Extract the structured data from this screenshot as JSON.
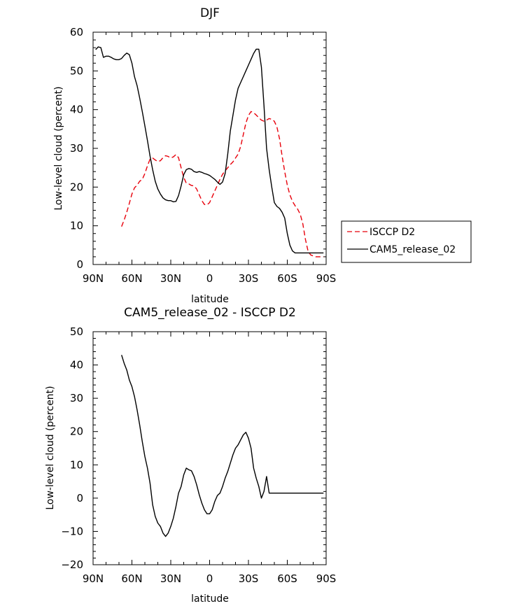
{
  "chart_data": [
    {
      "type": "line",
      "title": "DJF",
      "xlabel": "latitude",
      "ylabel": "Low-level cloud (percent)",
      "xlim": [
        90,
        -90
      ],
      "ylim": [
        0,
        60
      ],
      "xticks": [
        90,
        60,
        30,
        0,
        -30,
        -60,
        -90
      ],
      "xtick_labels": [
        "90N",
        "60N",
        "30N",
        "0",
        "30S",
        "60S",
        "90S"
      ],
      "yticks": [
        0,
        10,
        20,
        30,
        40,
        50,
        60
      ],
      "ytick_labels": [
        "0",
        "10",
        "20",
        "30",
        "40",
        "50",
        "60"
      ],
      "legend_position": "right",
      "series": [
        {
          "name": "ISCCP D2",
          "color": "#e8000b",
          "style": "dashed",
          "x": [
            68,
            66,
            64,
            62,
            60,
            58,
            56,
            54,
            52,
            50,
            48,
            46,
            44,
            42,
            40,
            38,
            36,
            34,
            32,
            30,
            28,
            26,
            24,
            22,
            20,
            18,
            16,
            14,
            12,
            10,
            8,
            6,
            4,
            2,
            0,
            -2,
            -4,
            -6,
            -8,
            -10,
            -12,
            -14,
            -16,
            -18,
            -20,
            -22,
            -24,
            -26,
            -28,
            -30,
            -32,
            -34,
            -36,
            -38,
            -40,
            -42,
            -44,
            -46,
            -48,
            -50,
            -52,
            -54,
            -56,
            -58,
            -60,
            -62,
            -64,
            -66,
            -68,
            -70,
            -72,
            -74,
            -76,
            -78,
            -80,
            -82,
            -84,
            -86,
            -88
          ],
          "y": [
            9.8,
            11.5,
            13.5,
            15.8,
            18.2,
            19.8,
            20.5,
            21.5,
            22.0,
            23.5,
            25.5,
            27.2,
            27.5,
            27.0,
            26.6,
            26.8,
            27.6,
            28.1,
            27.9,
            27.5,
            27.8,
            28.4,
            27.6,
            25.0,
            22.5,
            21.0,
            20.8,
            20.4,
            20.3,
            19.5,
            18.0,
            16.5,
            15.5,
            15.4,
            16.0,
            17.5,
            19.0,
            20.5,
            22.0,
            23.3,
            24.2,
            25.0,
            25.8,
            26.5,
            27.5,
            28.5,
            30.5,
            33.5,
            36.5,
            38.5,
            39.5,
            39.2,
            38.6,
            37.9,
            37.3,
            37.0,
            37.3,
            37.7,
            37.5,
            37.0,
            35.5,
            32.5,
            28.0,
            24.0,
            20.5,
            18.0,
            16.3,
            15.2,
            14.3,
            13.0,
            10.5,
            6.5,
            3.5,
            2.5,
            2.2,
            2.0,
            2.0,
            2.0,
            2.0
          ]
        },
        {
          "name": "CAM5_release_02",
          "color": "#000000",
          "style": "solid",
          "x": [
            88,
            86,
            84,
            82,
            80,
            78,
            76,
            74,
            72,
            70,
            68,
            66,
            64,
            62,
            60,
            58,
            56,
            54,
            52,
            50,
            48,
            46,
            44,
            42,
            40,
            38,
            36,
            34,
            32,
            30,
            28,
            26,
            24,
            22,
            20,
            18,
            16,
            14,
            12,
            10,
            8,
            6,
            4,
            2,
            0,
            -2,
            -4,
            -6,
            -8,
            -10,
            -12,
            -14,
            -16,
            -18,
            -20,
            -22,
            -24,
            -26,
            -28,
            -30,
            -32,
            -34,
            -36,
            -38,
            -40,
            -42,
            -44,
            -46,
            -48,
            -50,
            -52,
            -54,
            -56,
            -58,
            -60,
            -62,
            -64,
            -66,
            -68,
            -70,
            -72,
            -74,
            -76,
            -78,
            -80,
            -82,
            -84,
            -86,
            -88
          ],
          "y": [
            55.5,
            56.2,
            56.0,
            53.5,
            53.8,
            53.8,
            53.5,
            53.1,
            52.9,
            52.9,
            53.2,
            54.0,
            54.6,
            54.2,
            52.0,
            48.5,
            46.2,
            43.0,
            39.5,
            35.8,
            32.0,
            28.0,
            24.5,
            21.5,
            19.5,
            18.2,
            17.2,
            16.7,
            16.5,
            16.5,
            16.2,
            16.3,
            17.8,
            20.3,
            23.2,
            24.5,
            24.8,
            24.6,
            24.0,
            23.8,
            24.0,
            23.8,
            23.5,
            23.3,
            23.0,
            22.5,
            22.0,
            21.3,
            20.7,
            21.3,
            23.5,
            28.5,
            34.5,
            38.5,
            42.5,
            45.5,
            47.0,
            48.5,
            50.0,
            51.5,
            53.0,
            54.5,
            55.6,
            55.6,
            51.0,
            41.0,
            30.0,
            24.5,
            20.0,
            16.0,
            15.0,
            14.5,
            13.5,
            12.0,
            8.0,
            5.0,
            3.5,
            3.0,
            3.0,
            3.0,
            3.0,
            3.0,
            3.0,
            3.0,
            3.0,
            3.0,
            3.0,
            3.0,
            3.0
          ]
        }
      ]
    },
    {
      "type": "line",
      "title": "CAM5_release_02 - ISCCP D2",
      "xlabel": "latitude",
      "ylabel": "Low-level cloud (percent)",
      "xlim": [
        90,
        -90
      ],
      "ylim": [
        -20,
        50
      ],
      "xticks": [
        90,
        60,
        30,
        0,
        -30,
        -60,
        -90
      ],
      "xtick_labels": [
        "90N",
        "60N",
        "30N",
        "0",
        "30S",
        "60S",
        "90S"
      ],
      "yticks": [
        -20,
        -10,
        0,
        10,
        20,
        30,
        40,
        50
      ],
      "ytick_labels": [
        "−20",
        "−10",
        "0",
        "10",
        "20",
        "30",
        "40",
        "50"
      ],
      "series": [
        {
          "color": "#000000",
          "style": "solid",
          "x": [
            68,
            66,
            64,
            62,
            60,
            58,
            56,
            54,
            52,
            50,
            48,
            46,
            44,
            42,
            40,
            38,
            36,
            34,
            32,
            30,
            28,
            26,
            24,
            22,
            20,
            18,
            16,
            14,
            12,
            10,
            8,
            6,
            4,
            2,
            0,
            -2,
            -4,
            -6,
            -8,
            -10,
            -12,
            -14,
            -16,
            -18,
            -20,
            -22,
            -24,
            -26,
            -28,
            -30,
            -32,
            -34,
            -36,
            -38,
            -40,
            -42,
            -44,
            -46,
            -48,
            -50,
            -52,
            -54,
            -56,
            -58,
            -60,
            -62,
            -64,
            -66,
            -68,
            -70,
            -72,
            -74,
            -76,
            -78,
            -80,
            -82,
            -84,
            -86,
            -88
          ],
          "y": [
            43.0,
            40.5,
            38.5,
            35.5,
            33.5,
            30.5,
            26.5,
            22.0,
            17.0,
            12.5,
            9.0,
            4.5,
            -2.0,
            -5.5,
            -7.5,
            -8.5,
            -10.5,
            -11.5,
            -10.5,
            -8.5,
            -6.0,
            -2.5,
            1.5,
            3.5,
            7.0,
            9.0,
            8.5,
            8.2,
            6.5,
            4.0,
            1.0,
            -1.5,
            -3.5,
            -4.7,
            -4.7,
            -3.5,
            -1.0,
            0.8,
            1.5,
            3.5,
            6.0,
            8.0,
            10.5,
            13.0,
            15.0,
            16.0,
            17.5,
            19.0,
            19.8,
            18.0,
            15.0,
            9.0,
            6.0,
            3.5,
            0.0,
            2.0,
            6.5,
            1.5,
            1.5,
            1.5,
            1.5,
            1.5,
            1.5,
            1.5,
            1.5,
            1.5,
            1.5,
            1.5,
            1.5,
            1.5,
            1.5,
            1.5,
            1.5,
            1.5,
            1.5,
            1.5,
            1.5,
            1.5,
            1.5
          ]
        }
      ]
    }
  ]
}
